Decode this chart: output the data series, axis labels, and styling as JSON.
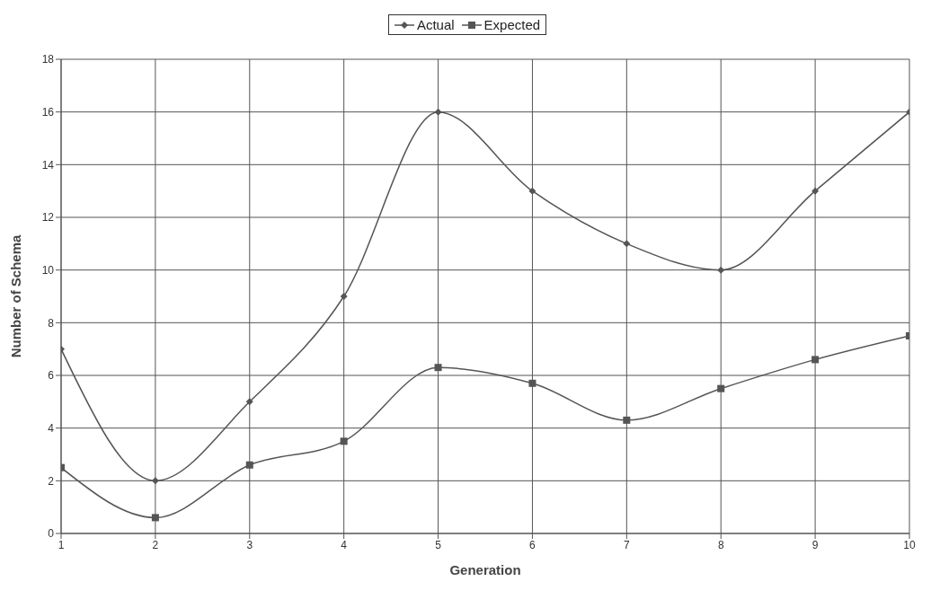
{
  "chart_data": {
    "type": "line",
    "xlabel": "Generation",
    "ylabel": "Number of Schema",
    "x": [
      1,
      2,
      3,
      4,
      5,
      6,
      7,
      8,
      9,
      10
    ],
    "series": [
      {
        "name": "Actual",
        "color": "#555555",
        "marker": "diamond",
        "values": [
          7,
          2,
          5,
          9,
          16,
          13,
          11,
          10,
          13,
          16
        ]
      },
      {
        "name": "Expected",
        "color": "#555555",
        "marker": "square",
        "values": [
          2.5,
          0.6,
          2.6,
          3.5,
          6.3,
          5.7,
          4.3,
          5.5,
          6.6,
          7.5
        ]
      }
    ],
    "xlim": [
      1,
      10
    ],
    "xticks": [
      1,
      2,
      3,
      4,
      5,
      6,
      7,
      8,
      9,
      10
    ],
    "ylim": [
      0,
      18
    ],
    "yticks": [
      0,
      2,
      4,
      6,
      8,
      10,
      12,
      14,
      16,
      18
    ],
    "grid": true,
    "legend": "top",
    "line_style": "solid"
  }
}
